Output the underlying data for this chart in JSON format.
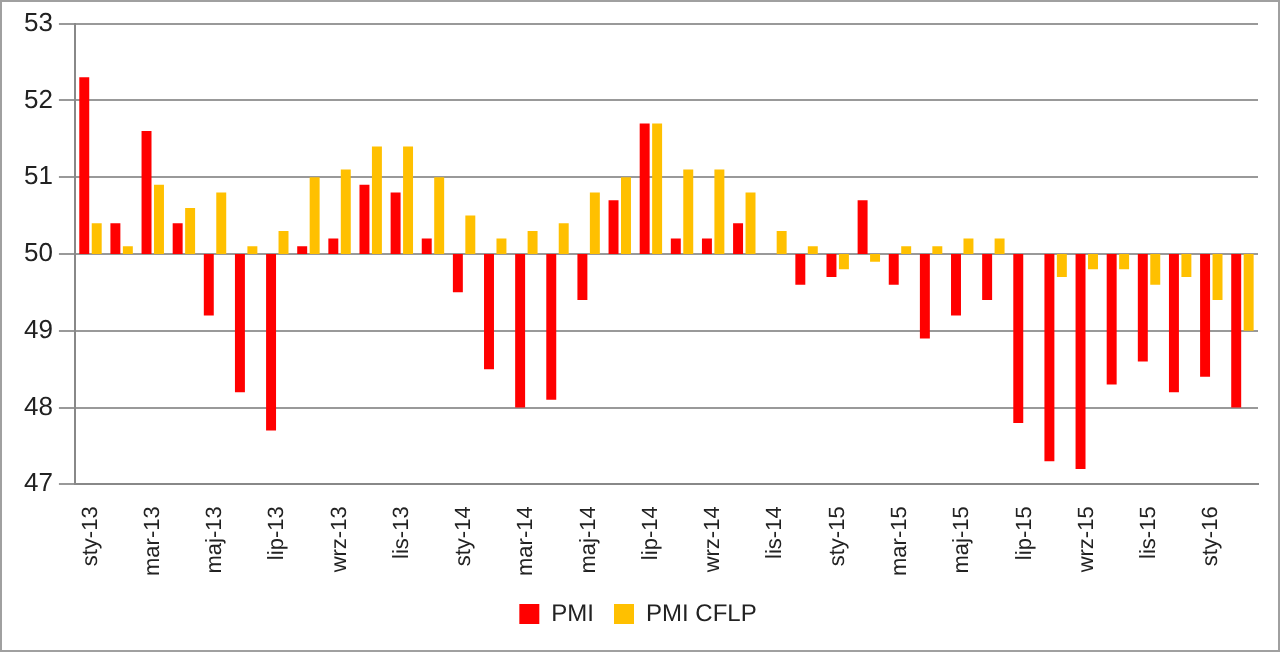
{
  "chart_data": {
    "type": "bar",
    "categories": [
      "sty-13",
      null,
      "mar-13",
      null,
      "maj-13",
      null,
      "lip-13",
      null,
      "wrz-13",
      null,
      "lis-13",
      null,
      "sty-14",
      null,
      "mar-14",
      null,
      "maj-14",
      null,
      "lip-14",
      null,
      "wrz-14",
      null,
      "lis-14",
      null,
      "sty-15",
      null,
      "mar-15",
      null,
      "maj-15",
      null,
      "lip-15",
      null,
      "wrz-15",
      null,
      "lis-15",
      null,
      "sty-16",
      null
    ],
    "series": [
      {
        "name": "PMI",
        "color": "#ff0000",
        "base": [
          50,
          50,
          50,
          50,
          50,
          50,
          50,
          50,
          50,
          50,
          50,
          50,
          50,
          50,
          50,
          50,
          50,
          50,
          50,
          50,
          50,
          50,
          null,
          50,
          50,
          50,
          50,
          50,
          50,
          50,
          50,
          50,
          50,
          50,
          50,
          50,
          50,
          50
        ],
        "values": [
          2.3,
          0.4,
          1.6,
          0.4,
          -0.8,
          -1.8,
          -2.3,
          0.1,
          0.2,
          0.9,
          0.8,
          0.2,
          -0.5,
          -1.5,
          -2.0,
          -1.9,
          -0.6,
          0.7,
          1.7,
          0.2,
          0.2,
          0.4,
          null,
          -0.4,
          -0.3,
          0.7,
          -0.4,
          -1.1,
          -0.8,
          -0.6,
          -2.2,
          -2.7,
          -2.8,
          -1.7,
          -1.4,
          -1.8,
          -1.6,
          -2.0
        ]
      },
      {
        "name": "PMI CFLP",
        "color": "#ffc000",
        "base": [
          50,
          50,
          50,
          50,
          50,
          50,
          50,
          50,
          50,
          50,
          50,
          50,
          50,
          50,
          50,
          50,
          50,
          50,
          50,
          50,
          50,
          50,
          50,
          50,
          50,
          50,
          50,
          50,
          50,
          50,
          null,
          50,
          50,
          50,
          50,
          50,
          50,
          50
        ],
        "values": [
          0.4,
          0.1,
          0.9,
          0.6,
          0.8,
          0.1,
          0.3,
          1.0,
          1.1,
          1.4,
          1.4,
          1.0,
          0.5,
          0.2,
          0.3,
          0.4,
          0.8,
          1.0,
          1.7,
          1.1,
          1.1,
          0.8,
          0.3,
          0.1,
          -0.2,
          -0.1,
          0.1,
          0.1,
          0.2,
          0.2,
          null,
          -0.3,
          -0.2,
          -0.2,
          -0.4,
          -0.3,
          -0.6,
          -1.0
        ]
      }
    ],
    "ylim": [
      47,
      53
    ],
    "yticks": [
      47,
      48,
      49,
      50,
      51,
      52,
      53
    ],
    "grid": "y",
    "legend": "bottom"
  }
}
